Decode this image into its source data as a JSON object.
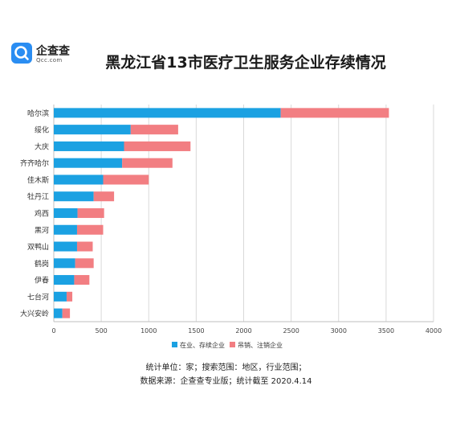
{
  "logo": {
    "name": "企查查",
    "domain": "Qcc.com",
    "color": "#2a8df2"
  },
  "chart_data": {
    "type": "bar",
    "orientation": "horizontal",
    "stacked": true,
    "title": "黑龙江省13市医疗卫生服务企业存续情况",
    "categories": [
      "哈尔滨",
      "绥化",
      "大庆",
      "齐齐哈尔",
      "佳木斯",
      "牡丹江",
      "鸡西",
      "黑河",
      "双鸭山",
      "鹤岗",
      "伊春",
      "七台河",
      "大兴安岭"
    ],
    "series": [
      {
        "name": "在业、存续企业",
        "color": "#1ba1e2",
        "values": [
          2390,
          810,
          740,
          720,
          520,
          420,
          250,
          245,
          245,
          225,
          215,
          135,
          90
        ]
      },
      {
        "name": "吊销、注销企业",
        "color": "#f27e82",
        "values": [
          1140,
          500,
          700,
          530,
          480,
          215,
          280,
          275,
          165,
          195,
          160,
          60,
          80
        ]
      }
    ],
    "xlim": [
      0,
      4000
    ],
    "xticks": [
      0,
      500,
      1000,
      1500,
      2000,
      2500,
      3000,
      3500,
      4000
    ],
    "grid": "vertical",
    "legend": "bottom"
  },
  "notes": {
    "line1": "统计单位：家；搜索范围：地区，行业范围；",
    "line2": "数据来源：企查查专业版；统计截至 2020.4.14"
  }
}
